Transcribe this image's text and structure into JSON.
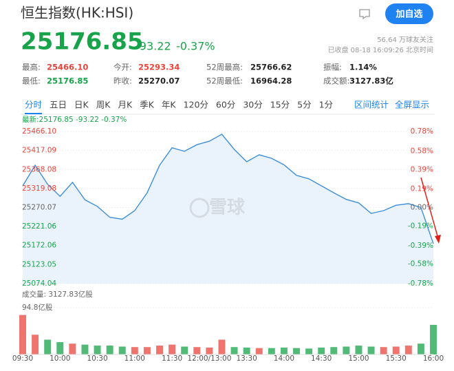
{
  "header": {
    "title": "恒生指数(HK:HSI)",
    "button": "加自选",
    "price": "25176.85",
    "change": "-93.22",
    "change_pct": "-0.37%",
    "followers": "56.64 万球友关注",
    "status": "已收盘 08-18 16:09:26 北京时间",
    "stats": [
      [
        "最高:",
        "25466.10"
      ],
      [
        "今开:",
        "25293.34"
      ],
      [
        "52周最高:",
        "25766.62"
      ],
      [
        "振幅:",
        "1.14%"
      ],
      [
        "最低:",
        "25176.85"
      ],
      [
        "昨收:",
        "25270.07"
      ],
      [
        "52周最低:",
        "16964.28"
      ],
      [
        "成交额:",
        "3127.83亿"
      ]
    ],
    "tabs": [
      "分时",
      "五日",
      "日K",
      "周K",
      "月K",
      "季K",
      "年K",
      "120分",
      "60分",
      "30分",
      "15分",
      "5分",
      "1分"
    ],
    "tools": [
      "区间统计",
      "全屏显示"
    ],
    "watermark": "雪球"
  },
  "chart_data": [
    {
      "type": "line",
      "subtitle": "最新:25176.85 -93.22 -0.37%",
      "x": [
        "09:30",
        "09:40",
        "09:50",
        "10:00",
        "10:10",
        "10:20",
        "10:30",
        "10:40",
        "10:50",
        "11:00",
        "11:10",
        "11:20",
        "11:30",
        "11:40",
        "11:50",
        "12:00/13:00",
        "13:10",
        "13:20",
        "13:30",
        "13:40",
        "13:50",
        "14:00",
        "14:10",
        "14:20",
        "14:30",
        "14:40",
        "14:50",
        "15:00",
        "15:10",
        "15:20",
        "15:30",
        "15:40",
        "15:50",
        "16:00"
      ],
      "values": [
        25326,
        25379,
        25330,
        25299,
        25335,
        25290,
        25273,
        25245,
        25240,
        25262,
        25308,
        25379,
        25424,
        25415,
        25432,
        25441,
        25459,
        25420,
        25388,
        25406,
        25397,
        25380,
        25353,
        25344,
        25326,
        25308,
        25291,
        25282,
        25255,
        25262,
        25276,
        25280,
        25270,
        25176.85
      ],
      "color": "#3d8fd8",
      "up_color": "#e8453c",
      "down_color": "#17a34a",
      "ylim": [
        25074.04,
        25466.1
      ],
      "yticks": [
        {
          "value": 25466.1,
          "label": "25466.10"
        },
        25417.09,
        25368.08,
        25319.08,
        25270.07,
        25221.06,
        25172.06,
        25123.05,
        25074.04
      ],
      "y2lim": [
        -0.78,
        0.78
      ],
      "y2ticks": [
        {
          "value": 0.78,
          "label": "0.78%"
        },
        {
          "value": 0.58,
          "label": "0.58%"
        },
        {
          "value": 0.39,
          "label": "0.39%"
        },
        {
          "value": 0.19,
          "label": "0.19%"
        },
        {
          "value": 0,
          "label": "0.00%"
        },
        {
          "value": -0.19,
          "label": "-0.19%"
        },
        {
          "value": -0.39,
          "label": "-0.39%"
        },
        {
          "value": -0.58,
          "label": "-0.58%"
        },
        {
          "value": -0.78,
          "label": "-0.78%"
        }
      ],
      "grid": true
    },
    {
      "type": "bar",
      "title": "成交量: 3127.83亿股",
      "x": [
        "09:30",
        "09:40",
        "09:50",
        "10:00",
        "10:10",
        "10:20",
        "10:30",
        "10:40",
        "10:50",
        "11:00",
        "11:10",
        "11:20",
        "11:30",
        "11:40",
        "11:50",
        "12:00/13:00",
        "13:10",
        "13:20",
        "13:30",
        "13:40",
        "13:50",
        "14:00",
        "14:10",
        "14:20",
        "14:30",
        "14:40",
        "14:50",
        "15:00",
        "15:10",
        "15:20",
        "15:30",
        "15:40",
        "15:50",
        "16:00"
      ],
      "values": [
        80,
        40,
        30,
        25,
        22,
        20,
        18,
        18,
        16,
        15,
        15,
        18,
        20,
        16,
        15,
        14,
        30,
        15,
        14,
        13,
        13,
        14,
        13,
        12,
        14,
        15,
        16,
        18,
        16,
        15,
        16,
        18,
        22,
        60
      ],
      "xticks": [
        "09:30",
        "10:00",
        "10:30",
        "11:00",
        "11:30",
        "12:00/13:00",
        "13:30",
        "14:00",
        "14:30",
        "15:00",
        "15:30",
        "16:00"
      ],
      "ylim": [
        0,
        94.8
      ],
      "yticks": [
        {
          "value": 94.8,
          "label": "94.8亿股"
        }
      ],
      "up_color": "#e8453c",
      "down_color": "#17a34a"
    }
  ]
}
